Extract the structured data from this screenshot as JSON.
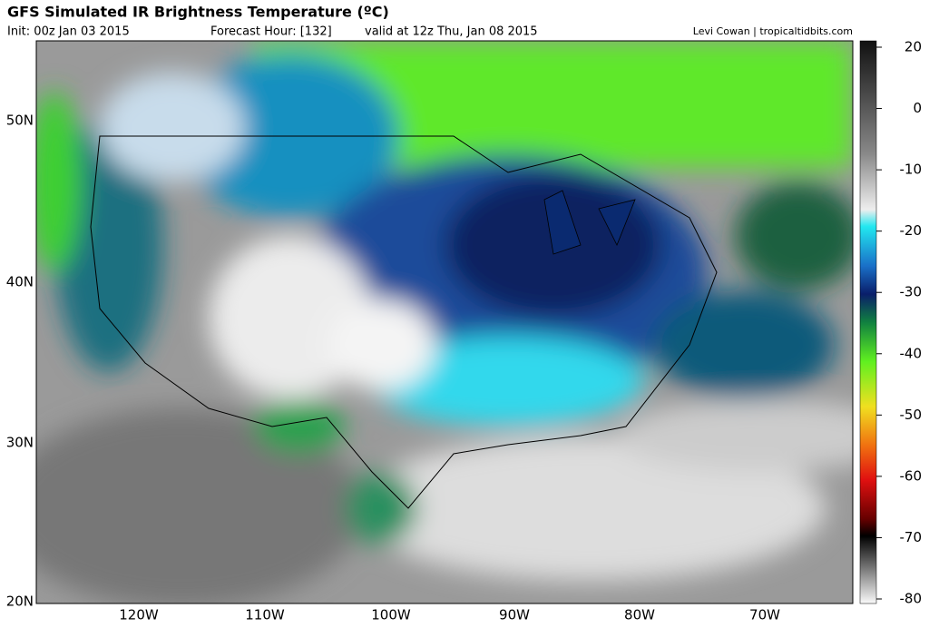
{
  "header": {
    "title": "GFS Simulated IR Brightness Temperature (ºC)",
    "init": "Init: 00z Jan 03 2015",
    "forecast_hour": "Forecast Hour: [132]",
    "valid": "valid at 12z Thu, Jan 08 2015",
    "credit": "Levi Cowan | tropicaltidbits.com"
  },
  "map": {
    "latitude_labels": [
      "50N",
      "40N",
      "30N",
      "20N"
    ],
    "longitude_labels": [
      "120W",
      "110W",
      "100W",
      "90W",
      "80W",
      "70W"
    ]
  },
  "colorbar": {
    "ticks": [
      20,
      0,
      -10,
      -20,
      -30,
      -40,
      -50,
      -60,
      -70,
      -80
    ]
  }
}
